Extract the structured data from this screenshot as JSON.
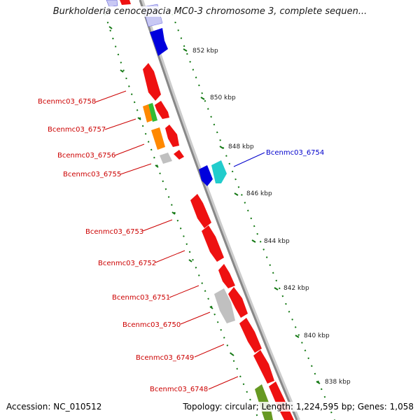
{
  "title": "Burkholderia cenocepacia MC0-3 chromosome 3, complete sequen...",
  "footer": {
    "accession": "Accession: NC_010512",
    "stats": "Topology: circular; Length: 1,224,595 bp; Genes: 1,058"
  },
  "colors": {
    "red": "#ee1111",
    "blue": "#0000dd",
    "light_blue": "#c8c8f4",
    "cyan": "#22cccc",
    "orange": "#ff8800",
    "green": "#33bb33",
    "olive": "#669922",
    "gray": "#c0c0c0",
    "backbone": "#888888",
    "tick_green": "#117711",
    "label_red": "#cc0000",
    "label_blue": "#0000cc"
  },
  "kbp_ticks": [
    {
      "label": "852 kbp"
    },
    {
      "label": "850 kbp"
    },
    {
      "label": "848 kbp"
    },
    {
      "label": "846 kbp"
    },
    {
      "label": "844 kbp"
    },
    {
      "label": "842 kbp"
    },
    {
      "label": "840 kbp"
    },
    {
      "label": "838 kbp"
    }
  ],
  "gene_labels": [
    {
      "label": "Bcenmc03_6758",
      "color": "red"
    },
    {
      "label": "Bcenmc03_6757",
      "color": "red"
    },
    {
      "label": "Bcenmc03_6756",
      "color": "red"
    },
    {
      "label": "Bcenmc03_6755",
      "color": "red"
    },
    {
      "label": "Bcenmc03_6753",
      "color": "red"
    },
    {
      "label": "Bcenmc03_6752",
      "color": "red"
    },
    {
      "label": "Bcenmc03_6751",
      "color": "red"
    },
    {
      "label": "Bcenmc03_6750",
      "color": "red"
    },
    {
      "label": "Bcenmc03_6749",
      "color": "red"
    },
    {
      "label": "Bcenmc03_6748",
      "color": "red"
    },
    {
      "label": "Bcenmc03_6754",
      "color": "blue"
    }
  ]
}
